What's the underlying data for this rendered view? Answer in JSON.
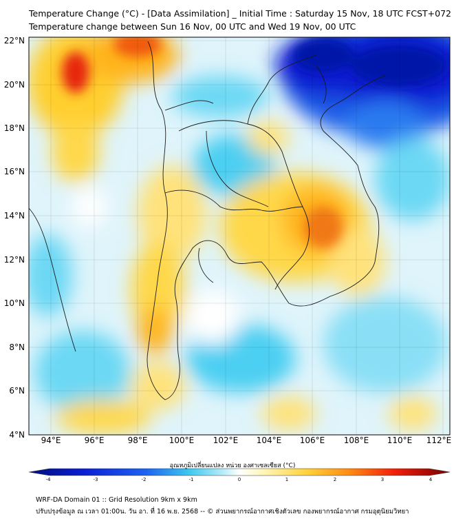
{
  "title": {
    "line1": "Temperature Change (°C) - [Data Assimilation] _ Initial Time : Saturday 15 Nov, 18 UTC FCST+072",
    "line2": "Temperature change between Sun 16 Nov, 00 UTC and Wed 19 Nov, 00 UTC"
  },
  "map": {
    "lat_labels": [
      "22°N",
      "20°N",
      "18°N",
      "16°N",
      "14°N",
      "12°N",
      "10°N",
      "8°N",
      "6°N",
      "4°N"
    ],
    "lon_labels": [
      "94°E",
      "96°E",
      "98°E",
      "100°E",
      "102°E",
      "104°E",
      "106°E",
      "108°E",
      "110°E",
      "112°E"
    ],
    "lat_range": [
      4,
      22
    ],
    "lon_range": [
      93,
      112.3
    ],
    "warm_color": "#d7191c",
    "cool_color": "#0a14c8"
  },
  "colorbar": {
    "label": "อุณหภูมิเปลี่ยนแปลง หน่วย องศาเซลเซียส (°C)",
    "ticks": [
      "-4",
      "-3",
      "-2",
      "-1",
      "0",
      "1",
      "2",
      "3",
      "4"
    ],
    "range": [
      -4,
      4
    ]
  },
  "footer": {
    "line1": "WRF-DA Domain 01 :: Grid Resolution 9km x 9km",
    "line2": "ปรับปรุงข้อมูล ณ เวลา 01:00น. วัน อา. ที่ 16 พ.ย. 2568 -- © ส่วนพยากรณ์อากาศเชิงตัวเลข กองพยากรณ์อากาศ กรมอุตุนิยมวิทยา"
  }
}
